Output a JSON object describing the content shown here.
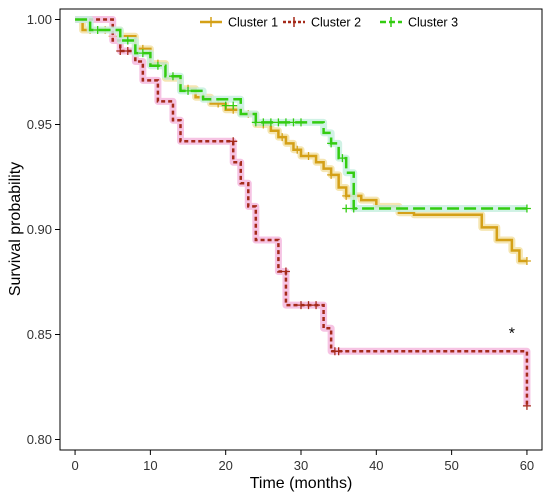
{
  "chart_data": {
    "type": "line",
    "subtype": "kaplan-meier step",
    "xlabel": "Time (months)",
    "ylabel": "Survival probability",
    "xlim": [
      -2,
      62
    ],
    "ylim": [
      0.795,
      1.005
    ],
    "xticks": [
      "0",
      "10",
      "20",
      "30",
      "40",
      "50",
      "60"
    ],
    "yticks": [
      "0.80",
      "0.85",
      "0.90",
      "0.95",
      "1.00"
    ],
    "xtick_values": [
      0,
      10,
      20,
      30,
      40,
      50,
      60
    ],
    "ytick_values": [
      0.8,
      0.85,
      0.9,
      0.95,
      1.0
    ],
    "grid": false,
    "legend_position": "top",
    "annotation": "*",
    "annotation_at": {
      "x": 58,
      "y": 0.848
    },
    "series": [
      {
        "name": "Cluster 1",
        "color": "#d4a017",
        "halo": "#f3e2a6",
        "dash": "solid",
        "steps": [
          [
            0,
            1.0
          ],
          [
            1,
            0.995
          ],
          [
            6,
            0.992
          ],
          [
            8,
            0.986
          ],
          [
            10,
            0.979
          ],
          [
            12,
            0.972
          ],
          [
            14,
            0.967
          ],
          [
            16,
            0.963
          ],
          [
            18,
            0.96
          ],
          [
            20,
            0.957
          ],
          [
            22,
            0.955
          ],
          [
            24,
            0.95
          ],
          [
            26,
            0.947
          ],
          [
            27,
            0.944
          ],
          [
            28,
            0.941
          ],
          [
            29,
            0.938
          ],
          [
            30,
            0.935
          ],
          [
            32,
            0.932
          ],
          [
            33,
            0.929
          ],
          [
            34,
            0.926
          ],
          [
            35,
            0.92
          ],
          [
            36,
            0.916
          ],
          [
            38,
            0.914
          ],
          [
            40,
            0.911
          ],
          [
            43,
            0.908
          ],
          [
            45,
            0.907
          ],
          [
            53,
            0.907
          ],
          [
            54,
            0.901
          ],
          [
            56,
            0.895
          ],
          [
            58,
            0.89
          ],
          [
            59,
            0.885
          ],
          [
            60,
            0.885
          ]
        ],
        "censor": [
          [
            2,
            0.995
          ],
          [
            4,
            0.995
          ],
          [
            5,
            0.992
          ],
          [
            9,
            0.986
          ],
          [
            11,
            0.979
          ],
          [
            15,
            0.967
          ],
          [
            17,
            0.963
          ],
          [
            19,
            0.96
          ],
          [
            21,
            0.957
          ],
          [
            23,
            0.955
          ],
          [
            25,
            0.95
          ],
          [
            27.5,
            0.944
          ],
          [
            29.5,
            0.938
          ],
          [
            31,
            0.935
          ],
          [
            34,
            0.926
          ],
          [
            36,
            0.916
          ],
          [
            37,
            0.916
          ],
          [
            60,
            0.885
          ]
        ]
      },
      {
        "name": "Cluster 2",
        "color": "#a52a1a",
        "halo": "#f4b8de",
        "dash": "dotted",
        "steps": [
          [
            0,
            1.0
          ],
          [
            5,
            0.99
          ],
          [
            6,
            0.985
          ],
          [
            8,
            0.98
          ],
          [
            9,
            0.971
          ],
          [
            11,
            0.961
          ],
          [
            13,
            0.952
          ],
          [
            14,
            0.942
          ],
          [
            21,
            0.932
          ],
          [
            22,
            0.922
          ],
          [
            23,
            0.911
          ],
          [
            24,
            0.895
          ],
          [
            27,
            0.88
          ],
          [
            28,
            0.864
          ],
          [
            33,
            0.853
          ],
          [
            34,
            0.842
          ],
          [
            55,
            0.842
          ],
          [
            60,
            0.816
          ]
        ],
        "censor": [
          [
            6,
            0.985
          ],
          [
            7,
            0.985
          ],
          [
            21,
            0.942
          ],
          [
            28,
            0.88
          ],
          [
            30,
            0.864
          ],
          [
            31,
            0.864
          ],
          [
            32,
            0.864
          ],
          [
            34.5,
            0.842
          ],
          [
            35,
            0.842
          ],
          [
            60,
            0.816
          ]
        ]
      },
      {
        "name": "Cluster 3",
        "color": "#33cc11",
        "halo": "#c8f0e0",
        "dash": "dashed",
        "steps": [
          [
            0,
            1.0
          ],
          [
            2,
            0.995
          ],
          [
            6,
            0.99
          ],
          [
            8,
            0.984
          ],
          [
            10,
            0.978
          ],
          [
            12,
            0.973
          ],
          [
            14,
            0.966
          ],
          [
            17,
            0.962
          ],
          [
            22,
            0.955
          ],
          [
            24,
            0.951
          ],
          [
            33,
            0.946
          ],
          [
            34,
            0.941
          ],
          [
            35,
            0.934
          ],
          [
            36,
            0.927
          ],
          [
            37,
            0.91
          ],
          [
            60,
            0.91
          ]
        ],
        "censor": [
          [
            3,
            0.995
          ],
          [
            7,
            0.99
          ],
          [
            9,
            0.984
          ],
          [
            11,
            0.978
          ],
          [
            13,
            0.973
          ],
          [
            15,
            0.966
          ],
          [
            20,
            0.959
          ],
          [
            21,
            0.959
          ],
          [
            24,
            0.951
          ],
          [
            25,
            0.951
          ],
          [
            26,
            0.951
          ],
          [
            27,
            0.951
          ],
          [
            28,
            0.951
          ],
          [
            29,
            0.951
          ],
          [
            30,
            0.951
          ],
          [
            34,
            0.941
          ],
          [
            35.5,
            0.934
          ],
          [
            36,
            0.91
          ],
          [
            37,
            0.91
          ],
          [
            60,
            0.91
          ]
        ]
      }
    ]
  }
}
